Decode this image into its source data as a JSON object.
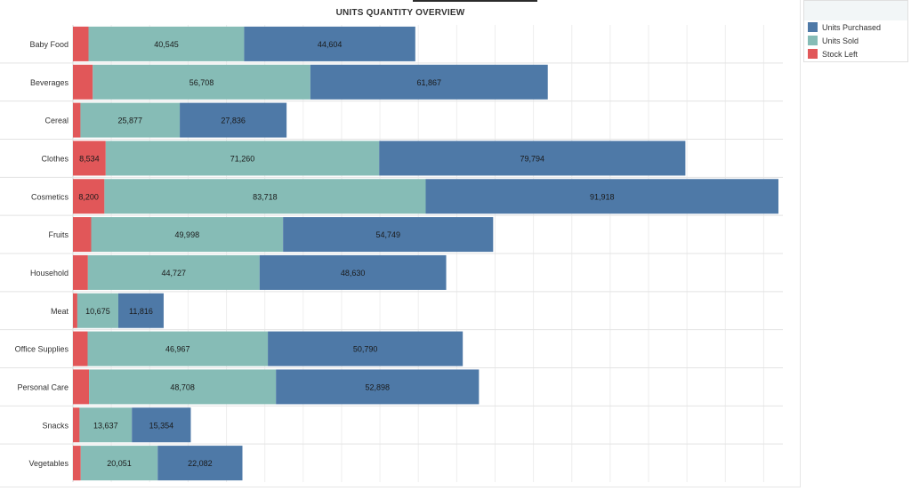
{
  "title": "UNITS QUANTITY OVERVIEW",
  "colors": {
    "units_purchased": "#4e79a7",
    "units_sold": "#86bcb6",
    "stock_left": "#e15759"
  },
  "legend": [
    {
      "label": "Units Purchased",
      "color": "#4e79a7"
    },
    {
      "label": "Units Sold",
      "color": "#86bcb6"
    },
    {
      "label": "Stock Left",
      "color": "#e15759"
    }
  ],
  "chart_data": {
    "type": "bar",
    "orientation": "horizontal",
    "stacked": true,
    "title": "UNITS QUANTITY OVERVIEW",
    "xlabel": "",
    "ylabel": "",
    "grid": true,
    "legend_position": "top-right",
    "xlim": [
      0,
      185000
    ],
    "categories": [
      "Baby Food",
      "Beverages",
      "Cereal",
      "Clothes",
      "Cosmetics",
      "Fruits",
      "Household",
      "Meat",
      "Office Supplies",
      "Personal Care",
      "Snacks",
      "Vegetables"
    ],
    "series": [
      {
        "name": "Stock Left",
        "values": [
          4059,
          5159,
          1959,
          8534,
          8200,
          4751,
          3903,
          1141,
          3823,
          4190,
          1717,
          2031
        ],
        "labels": [
          "",
          "",
          "",
          "8,534",
          "8,200",
          "",
          "",
          "",
          "",
          "",
          "",
          ""
        ]
      },
      {
        "name": "Units Sold",
        "values": [
          40545,
          56708,
          25877,
          71260,
          83718,
          49998,
          44727,
          10675,
          46967,
          48708,
          13637,
          20051
        ],
        "labels": [
          "40,545",
          "56,708",
          "25,877",
          "71,260",
          "83,718",
          "49,998",
          "44,727",
          "10,675",
          "46,967",
          "48,708",
          "13,637",
          "20,051"
        ]
      },
      {
        "name": "Units Purchased",
        "values": [
          44604,
          61867,
          27836,
          79794,
          91918,
          54749,
          48630,
          11816,
          50790,
          52898,
          15354,
          22082
        ],
        "labels": [
          "44,604",
          "61,867",
          "27,836",
          "79,794",
          "91,918",
          "54,749",
          "48,630",
          "11,816",
          "50,790",
          "52,898",
          "15,354",
          "22,082"
        ]
      }
    ]
  }
}
